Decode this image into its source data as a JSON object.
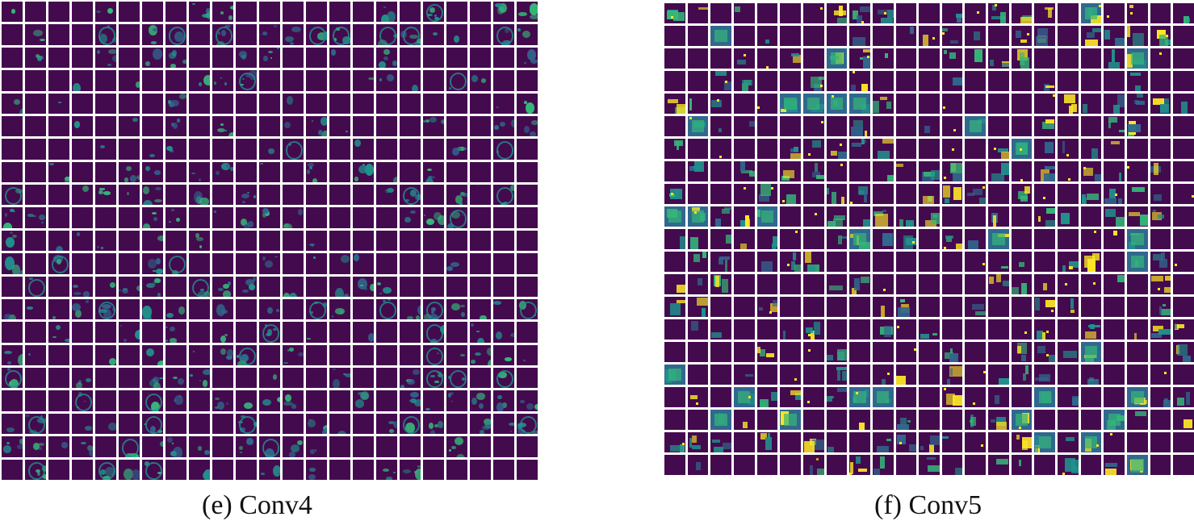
{
  "figure": {
    "panels": [
      {
        "id": "e",
        "caption": "(e) Conv4",
        "grid": {
          "cols": 23,
          "rows": 21
        },
        "style": "rings"
      },
      {
        "id": "f",
        "caption": "(f) Conv5",
        "grid": {
          "cols": 23,
          "rows": 21
        },
        "style": "blobs"
      }
    ],
    "colors": {
      "background": "#440a4e",
      "low": "#31688e",
      "mid": "#21918c",
      "high": "#35b779",
      "peak": "#fde725"
    }
  }
}
